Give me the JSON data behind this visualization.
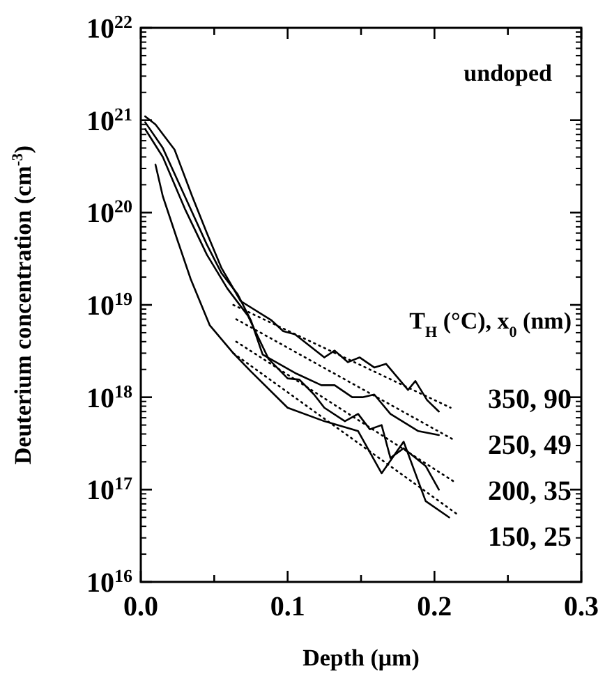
{
  "chart_data": {
    "type": "line",
    "xlabel": "Depth (μm)",
    "ylabel": "Deuterium concentration (cm$^{-3}$)",
    "legend_title": "T$_{H}$ (°C), x$_{0}$ (nm)",
    "annotations": [
      "undoped"
    ],
    "log": "y",
    "xlim": [
      0,
      0.3
    ],
    "ylim": [
      1e+16,
      1e+22
    ],
    "xticks": [
      {
        "value": 0,
        "label": "0.0"
      },
      {
        "value": 0.05,
        "label": null
      },
      0.1,
      {
        "value": 0.15,
        "label": null
      },
      0.2,
      {
        "value": 0.25,
        "label": null
      },
      0.3
    ],
    "yticks": [
      {
        "value": 1e+16,
        "label": "10$^{16}$"
      },
      {
        "value": 1e+17,
        "label": "10$^{17}$"
      },
      {
        "value": 1e+18,
        "label": "10$^{18}$"
      },
      {
        "value": 1e+19,
        "label": "10$^{19}$"
      },
      {
        "value": 1e+20,
        "label": "10$^{20}$"
      },
      {
        "value": 1e+21,
        "label": "10$^{21}$"
      },
      {
        "value": 1e+22,
        "label": "10$^{22}$"
      }
    ],
    "line_style": "solid",
    "marker": "none",
    "legend": "right",
    "series": [
      {
        "name": "350, 90",
        "color": "#000000",
        "x": [
          0.003,
          0.01,
          0.023,
          0.035,
          0.045,
          0.055,
          0.068,
          0.089,
          0.097,
          0.105,
          0.125,
          0.132,
          0.141,
          0.149,
          0.159,
          0.167,
          0.182,
          0.187,
          0.195,
          0.203
        ],
        "values": [
          1.1e+21,
          9e+20,
          4.8e+20,
          1.5e+20,
          6e+19,
          2.5e+19,
          1.1e+19,
          6.8e+18,
          5.2e+18,
          4.8e+18,
          2.7e+18,
          3.2e+18,
          2.4e+18,
          2.7e+18,
          2.1e+18,
          2.3e+18,
          1.2e+18,
          1.5e+18,
          9.3e+17,
          7e+17
        ]
      },
      {
        "name": "250, 49",
        "color": "#000000",
        "x": [
          0.003,
          0.015,
          0.03,
          0.045,
          0.055,
          0.066,
          0.075,
          0.083,
          0.106,
          0.123,
          0.132,
          0.144,
          0.151,
          0.159,
          0.17,
          0.189,
          0.203
        ],
        "values": [
          9.5e+20,
          5e+20,
          1.5e+20,
          4.5e+19,
          2.2e+19,
          1.3e+19,
          6.8e+18,
          2.9e+18,
          1.8e+18,
          1.35e+18,
          1.35e+18,
          1e+18,
          1e+18,
          1.07e+18,
          6.6e+17,
          4.3e+17,
          3.9e+17
        ]
      },
      {
        "name": "200, 35",
        "color": "#000000",
        "x": [
          0.003,
          0.015,
          0.03,
          0.045,
          0.059,
          0.073,
          0.087,
          0.1,
          0.108,
          0.118,
          0.125,
          0.139,
          0.148,
          0.156,
          0.164,
          0.17,
          0.179,
          0.194,
          0.203
        ],
        "values": [
          8e+20,
          4e+20,
          1.1e+20,
          3.5e+19,
          1.5e+19,
          7.6e+18,
          2.6e+18,
          1.6e+18,
          1.55e+18,
          1.07e+18,
          7.7e+17,
          5.5e+17,
          6.6e+17,
          4.5e+17,
          5e+17,
          2.2e+17,
          2.8e+17,
          1.8e+17,
          1e+17
        ]
      },
      {
        "name": "150, 25",
        "color": "#000000",
        "x": [
          0.01,
          0.015,
          0.025,
          0.034,
          0.047,
          0.063,
          0.075,
          0.1,
          0.125,
          0.148,
          0.164,
          0.179,
          0.194,
          0.21
        ],
        "values": [
          3.3e+20,
          1.5e+20,
          5e+19,
          1.9e+19,
          6e+18,
          3e+18,
          1.9e+18,
          7.7e+17,
          5.5e+17,
          4.3e+17,
          1.5e+17,
          3.3e+17,
          7.5e+16,
          5e+16
        ]
      },
      {
        "color": "#000000",
        "line_style": "dotted",
        "x": [
          0.063,
          0.211
        ],
        "values": [
          1e+19,
          7.7e+17
        ]
      },
      {
        "color": "#000000",
        "line_style": "dotted",
        "x": [
          0.065,
          0.214
        ],
        "values": [
          7e+18,
          3.4e+17
        ]
      },
      {
        "color": "#000000",
        "line_style": "dotted",
        "x": [
          0.065,
          0.214
        ],
        "values": [
          4e+18,
          1.2e+17
        ]
      },
      {
        "color": "#000000",
        "line_style": "dotted",
        "x": [
          0.063,
          0.217
        ],
        "values": [
          3e+18,
          5.2e+16
        ]
      }
    ]
  }
}
